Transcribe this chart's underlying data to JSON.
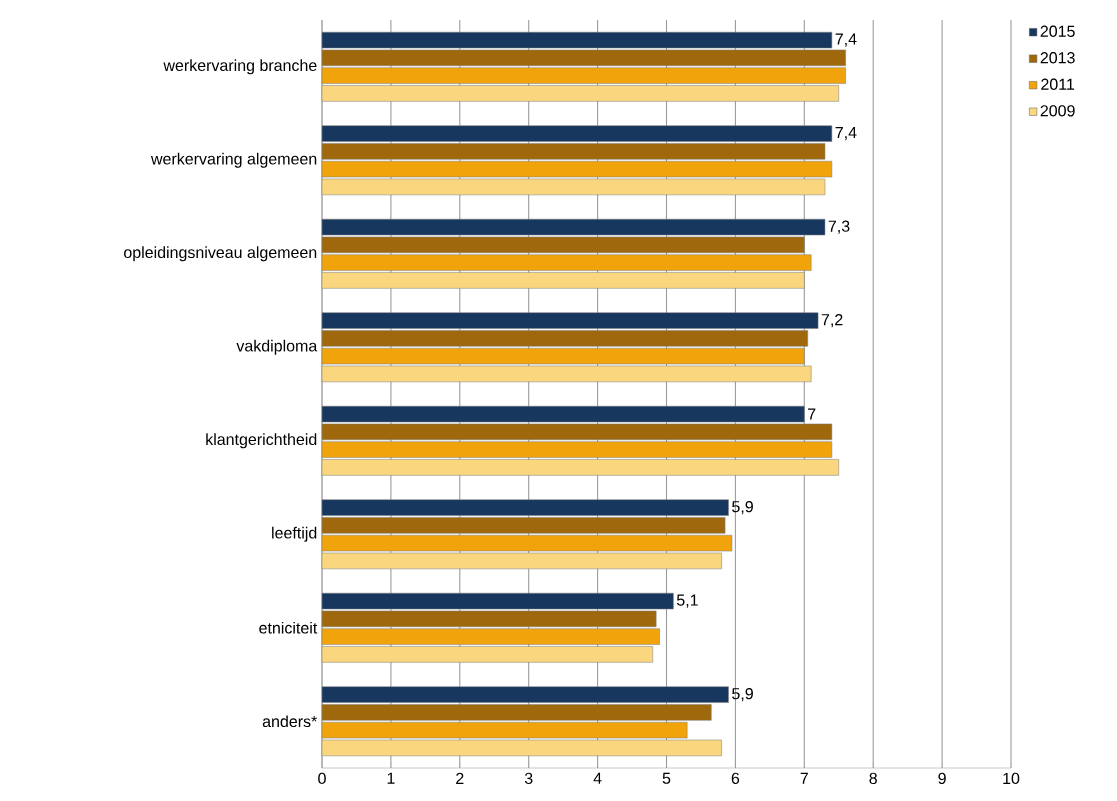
{
  "chart_data": {
    "type": "bar",
    "orientation": "horizontal",
    "categories": [
      "werkervaring branche",
      "werkervaring algemeen",
      "opleidingsniveau algemeen",
      "vakdiploma",
      "klantgerichtheid",
      "leeftijd",
      "etniciteit",
      "anders*"
    ],
    "series": [
      {
        "name": "2015",
        "color": "#17375e",
        "values": [
          7.4,
          7.4,
          7.3,
          7.2,
          7,
          5.9,
          5.1,
          5.9
        ],
        "value_labels": [
          "7,4",
          "7,4",
          "7,3",
          "7,2",
          "7",
          "5,9",
          "5,1",
          "5,9"
        ]
      },
      {
        "name": "2013",
        "color": "#a0680c",
        "values": [
          7.6,
          7.3,
          7.0,
          7.05,
          7.4,
          5.85,
          4.85,
          5.65
        ]
      },
      {
        "name": "2011",
        "color": "#f0a30a",
        "values": [
          7.6,
          7.4,
          7.1,
          7.0,
          7.4,
          5.95,
          4.9,
          5.3
        ]
      },
      {
        "name": "2009",
        "color": "#fad77e",
        "values": [
          7.5,
          7.3,
          7.0,
          7.1,
          7.5,
          5.8,
          4.8,
          5.8
        ]
      }
    ],
    "xlim": [
      0,
      10
    ],
    "xticks": [
      0,
      1,
      2,
      3,
      4,
      5,
      6,
      7,
      8,
      9,
      10
    ],
    "grid": "x",
    "legend": "top right"
  }
}
